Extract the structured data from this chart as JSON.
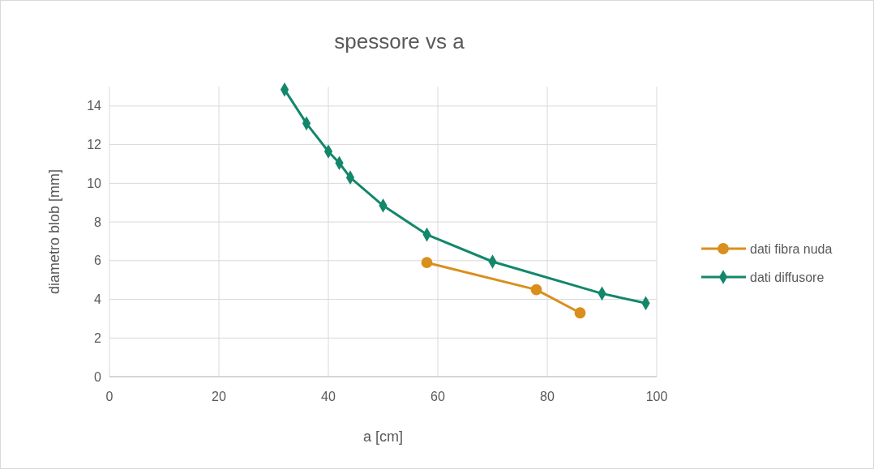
{
  "chart_data": {
    "type": "line",
    "title": "spessore vs a",
    "xlabel": "a [cm]",
    "ylabel": "diametro blob [mm]",
    "xlim": [
      0,
      100
    ],
    "xticks": [
      0,
      20,
      40,
      60,
      80,
      100
    ],
    "ylim": [
      0,
      15
    ],
    "yticks": [
      0,
      2,
      4,
      6,
      8,
      10,
      12,
      14
    ],
    "grid": true,
    "legend": "right",
    "series": [
      {
        "name": "dati fibra nuda",
        "color": "#d98f1c",
        "marker": "circle",
        "x": [
          58,
          78,
          86
        ],
        "values": [
          5.9,
          4.5,
          3.3
        ]
      },
      {
        "name": "dati diffusore",
        "color": "#13876b",
        "marker": "diamond",
        "x": [
          32,
          36,
          40,
          42,
          44,
          50,
          58,
          70,
          90,
          98
        ],
        "values": [
          14.85,
          13.1,
          11.65,
          11.05,
          10.3,
          8.85,
          7.35,
          5.95,
          4.3,
          3.8
        ]
      }
    ]
  }
}
